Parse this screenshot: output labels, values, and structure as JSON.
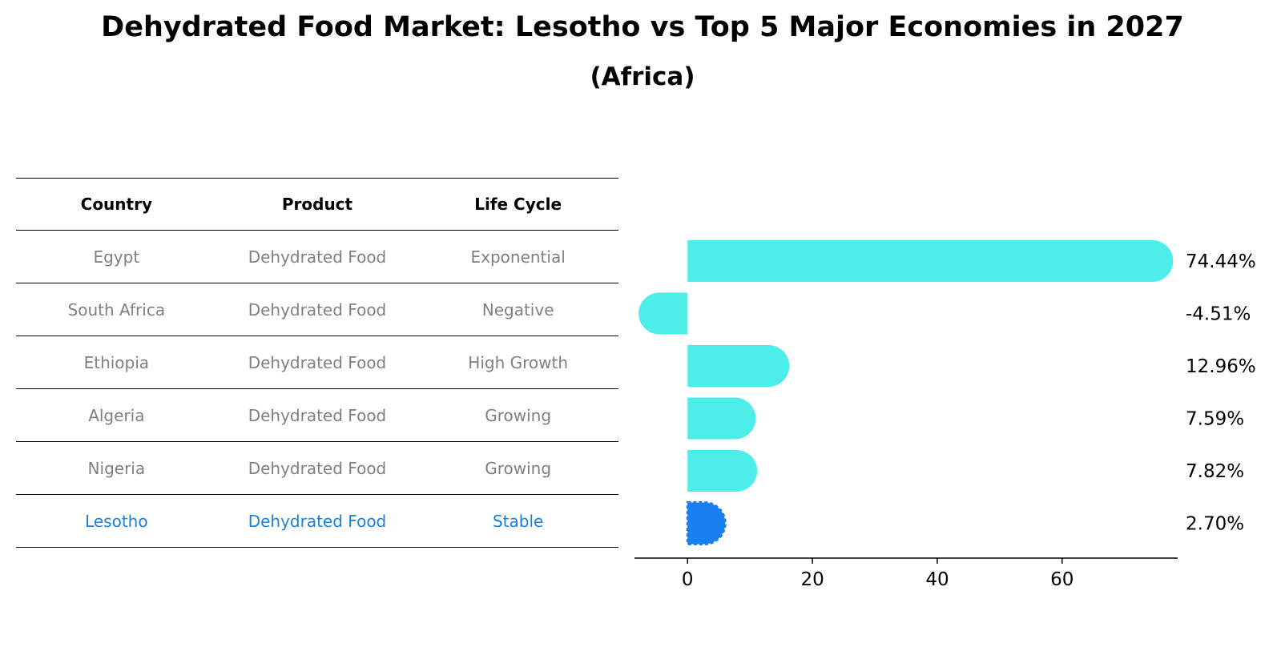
{
  "title": "Dehydrated Food Market: Lesotho vs Top 5 Major Economies in 2027",
  "subtitle": "(Africa)",
  "table": {
    "headers": [
      "Country",
      "Product",
      "Life Cycle"
    ],
    "rows": [
      {
        "country": "Egypt",
        "product": "Dehydrated Food",
        "life_cycle": "Exponential",
        "highlight": false
      },
      {
        "country": "South Africa",
        "product": "Dehydrated Food",
        "life_cycle": "Negative",
        "highlight": false
      },
      {
        "country": "Ethiopia",
        "product": "Dehydrated Food",
        "life_cycle": "High Growth",
        "highlight": false
      },
      {
        "country": "Algeria",
        "product": "Dehydrated Food",
        "life_cycle": "Growing",
        "highlight": false
      },
      {
        "country": "Nigeria",
        "product": "Dehydrated Food",
        "life_cycle": "Growing",
        "highlight": false
      },
      {
        "country": "Lesotho",
        "product": "Dehydrated Food",
        "life_cycle": "Stable",
        "highlight": true
      }
    ]
  },
  "chart_data": {
    "type": "bar",
    "orientation": "horizontal",
    "categories": [
      "Egypt",
      "South Africa",
      "Ethiopia",
      "Algeria",
      "Nigeria",
      "Lesotho"
    ],
    "values": [
      74.44,
      -4.51,
      12.96,
      7.59,
      7.82,
      2.7
    ],
    "value_labels": [
      "74.44%",
      "-4.51%",
      "12.96%",
      "7.59%",
      "7.82%",
      "2.70%"
    ],
    "xlim": [
      -8.5,
      78.5
    ],
    "xticks": [
      0,
      20,
      40,
      60
    ],
    "grid": false,
    "colors": {
      "default": "#4deeea",
      "highlight": "#1a80f0",
      "highlight_row_text": "#1a80d9",
      "table_text": "#808080"
    },
    "highlight_category": "Lesotho"
  }
}
